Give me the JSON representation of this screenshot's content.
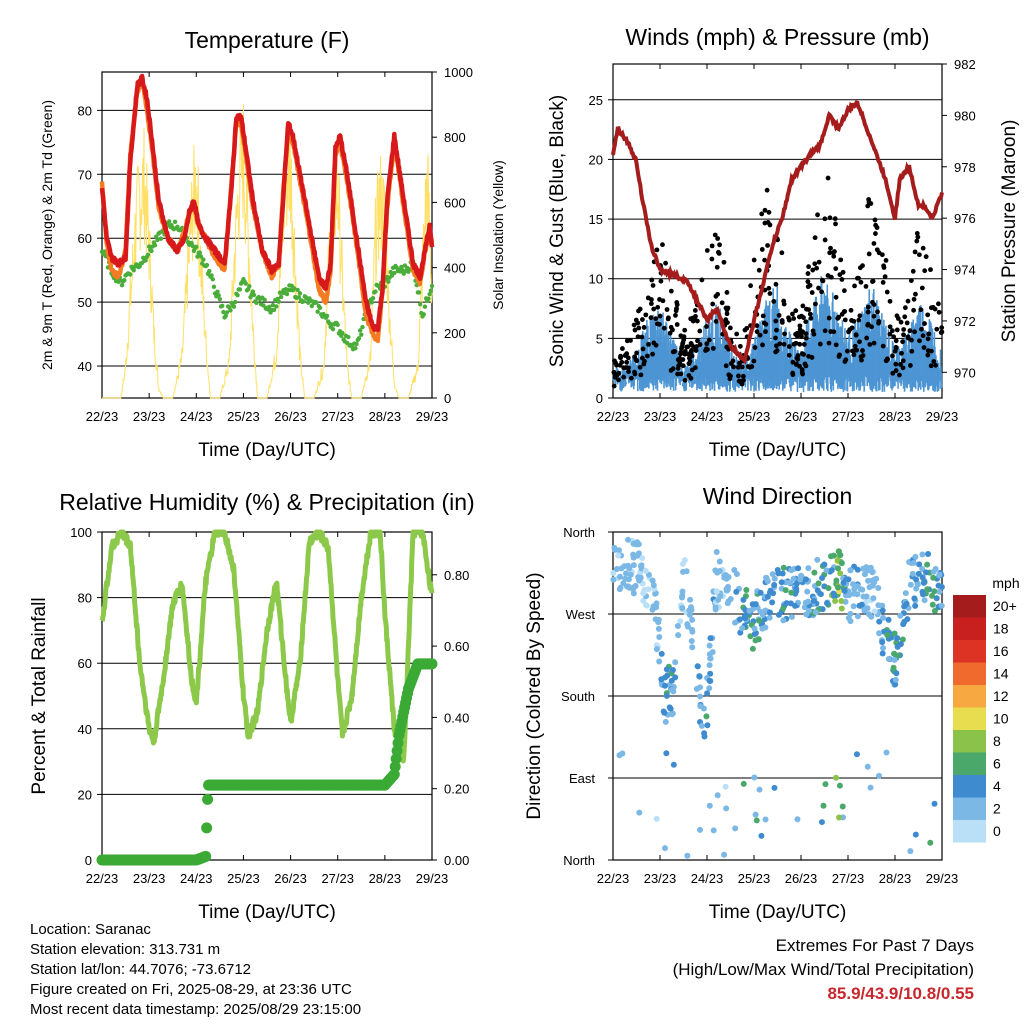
{
  "footer": {
    "location": "Location: Saranac",
    "elevation": "Station elevation: 313.731 m",
    "latlon": "Station lat/lon: 44.7076; -73.6712",
    "created": "Figure created on Fri, 2025-08-29, at 23:36 UTC",
    "recent": "Most recent data timestamp: 2025/08/29 23:15:00",
    "extremes_title": "Extremes For Past 7 Days",
    "extremes_sub": "(High/Low/Max Wind/Total Precipitation)",
    "extremes_values": "85.9/43.9/10.8/0.55"
  },
  "colors": {
    "temp2m": "#d7191c",
    "temp9m": "#f47b20",
    "dewpoint": "#4aad3a",
    "solar": "#ffe066",
    "gust": "#000000",
    "wind": "#4d95d3",
    "pressure": "#a51c1c",
    "rh": "#8cc94a",
    "precip": "#3aaa35"
  },
  "chart_data": [
    {
      "type": "line",
      "title": "Temperature (F)",
      "xlabel": "Time (Day/UTC)",
      "ylabel": "2m & 9m T (Red, Orange) & 2m Td (Green)",
      "y2label": "Solar Insolation (Yellow)",
      "x_ticks": [
        "22/23",
        "23/23",
        "24/23",
        "25/23",
        "26/23",
        "27/23",
        "28/23",
        "29/23"
      ],
      "ylim": [
        35,
        86
      ],
      "y_ticks": [
        40,
        50,
        60,
        70,
        80
      ],
      "y2lim": [
        0,
        1000
      ],
      "y2_ticks": [
        0,
        200,
        400,
        600,
        800,
        1000
      ],
      "series": [
        {
          "name": "2m T",
          "x": [
            0,
            0.1,
            0.2,
            0.35,
            0.5,
            0.6,
            0.75,
            0.85,
            0.95,
            1.05,
            1.2,
            1.4,
            1.6,
            1.75,
            1.85,
            1.95,
            2.05,
            2.2,
            2.4,
            2.6,
            2.75,
            2.85,
            2.95,
            3.05,
            3.2,
            3.4,
            3.6,
            3.75,
            3.85,
            3.95,
            4.05,
            4.2,
            4.4,
            4.6,
            4.75,
            4.85,
            4.95,
            5.05,
            5.2,
            5.4,
            5.6,
            5.75,
            5.85,
            5.95,
            6.05,
            6.2,
            6.4,
            6.6,
            6.75,
            6.85,
            6.95,
            7.0
          ],
          "values": [
            68,
            60,
            57,
            56,
            57,
            72,
            84,
            85,
            82,
            76,
            66,
            60,
            58,
            60,
            64,
            66,
            62,
            60,
            58,
            56,
            68,
            79,
            79,
            74,
            66,
            58,
            55,
            56,
            67,
            78,
            76,
            70,
            62,
            54,
            52,
            56,
            74,
            76,
            70,
            60,
            50,
            46,
            46,
            52,
            66,
            76,
            66,
            56,
            54,
            58,
            62,
            59
          ]
        },
        {
          "name": "9m T",
          "x": [
            0,
            0.1,
            0.2,
            0.35,
            0.5,
            0.6,
            0.75,
            0.85,
            0.95,
            1.05,
            1.2,
            1.4,
            1.6,
            1.75,
            1.85,
            1.95,
            2.05,
            2.2,
            2.4,
            2.6,
            2.75,
            2.85,
            2.95,
            3.05,
            3.2,
            3.4,
            3.6,
            3.75,
            3.85,
            3.95,
            4.05,
            4.2,
            4.4,
            4.6,
            4.75,
            4.85,
            4.95,
            5.05,
            5.2,
            5.4,
            5.6,
            5.75,
            5.85,
            5.95,
            6.05,
            6.2,
            6.4,
            6.6,
            6.75,
            6.85,
            6.95,
            7.0
          ],
          "values": [
            69,
            59,
            55,
            54,
            58,
            73,
            83,
            85,
            80,
            75,
            65,
            60,
            58,
            61,
            64,
            65,
            62,
            60,
            57,
            55,
            69,
            78,
            78,
            73,
            65,
            58,
            54,
            56,
            68,
            77,
            75,
            69,
            61,
            52,
            50,
            55,
            73,
            75,
            69,
            59,
            48,
            45,
            44,
            52,
            65,
            75,
            65,
            55,
            53,
            58,
            61,
            59
          ]
        },
        {
          "name": "2m Td",
          "x": [
            0,
            0.2,
            0.4,
            0.6,
            0.8,
            1.0,
            1.2,
            1.4,
            1.6,
            1.8,
            2.0,
            2.2,
            2.4,
            2.6,
            2.8,
            3.0,
            3.2,
            3.4,
            3.6,
            3.8,
            4.0,
            4.2,
            4.4,
            4.6,
            4.8,
            5.0,
            5.2,
            5.4,
            5.6,
            5.8,
            6.0,
            6.2,
            6.4,
            6.6,
            6.8,
            7.0
          ],
          "values": [
            58,
            55,
            53,
            55,
            56,
            58,
            60,
            62,
            62,
            60,
            58,
            56,
            52,
            48,
            50,
            53,
            51,
            50,
            49,
            51,
            52,
            51,
            50,
            49,
            47,
            46,
            44,
            43,
            48,
            52,
            53,
            55,
            55,
            56,
            48,
            53
          ]
        },
        {
          "name": "Solar",
          "x": [
            0,
            0.2,
            0.4,
            0.5,
            0.6,
            0.7,
            0.8,
            0.9,
            1.0,
            1.1,
            1.2,
            1.3,
            1.5,
            1.7,
            1.8,
            1.9,
            2.0,
            2.1,
            2.2,
            2.3,
            2.5,
            2.7,
            2.8,
            2.9,
            3.0,
            3.1,
            3.2,
            3.3,
            3.5,
            3.7,
            3.8,
            3.9,
            4.0,
            4.1,
            4.2,
            4.3,
            4.5,
            4.7,
            4.8,
            4.9,
            5.0,
            5.1,
            5.2,
            5.3,
            5.5,
            5.7,
            5.8,
            5.9,
            6.0,
            6.1,
            6.2,
            6.3,
            6.5,
            6.7,
            6.8,
            6.9,
            7.0
          ],
          "values": [
            0,
            0,
            0,
            120,
            380,
            640,
            800,
            850,
            600,
            260,
            40,
            0,
            0,
            160,
            440,
            700,
            860,
            520,
            220,
            0,
            0,
            140,
            520,
            820,
            950,
            640,
            280,
            0,
            0,
            180,
            560,
            880,
            900,
            520,
            160,
            0,
            0,
            120,
            480,
            760,
            820,
            450,
            120,
            0,
            0,
            160,
            620,
            780,
            700,
            320,
            60,
            0,
            0,
            120,
            520,
            860,
            420
          ]
        }
      ]
    },
    {
      "type": "scatter",
      "title": "Winds (mph) & Pressure (mb)",
      "xlabel": "Time (Day/UTC)",
      "ylabel": "Sonic Wind & Gust (Blue, Black)",
      "y2label": "Station Pressure (Maroon)",
      "x_ticks": [
        "22/23",
        "23/23",
        "24/23",
        "25/23",
        "26/23",
        "27/23",
        "28/23",
        "29/23"
      ],
      "ylim": [
        0,
        28
      ],
      "y_ticks": [
        0,
        5,
        10,
        15,
        20,
        25
      ],
      "y2lim": [
        969,
        982
      ],
      "y2_ticks": [
        970,
        972,
        974,
        976,
        978,
        980,
        982
      ],
      "series": [
        {
          "name": "Wind",
          "x": [
            0,
            0.25,
            0.5,
            0.75,
            1.0,
            1.25,
            1.5,
            1.75,
            2.0,
            2.25,
            2.5,
            2.75,
            3.0,
            3.25,
            3.5,
            3.75,
            4.0,
            4.25,
            4.5,
            4.75,
            5.0,
            5.25,
            5.5,
            5.75,
            6.0,
            6.25,
            6.5,
            6.75,
            7.0
          ],
          "values": [
            2,
            2,
            3,
            5,
            6,
            4,
            2,
            3,
            5,
            6,
            3,
            2,
            4,
            6,
            7,
            4,
            3,
            6,
            8,
            6,
            4,
            5,
            7,
            5,
            3,
            4,
            6,
            5,
            3
          ]
        },
        {
          "name": "Gust",
          "x": [
            0,
            0.25,
            0.5,
            0.75,
            1.0,
            1.25,
            1.5,
            1.75,
            2.0,
            2.25,
            2.5,
            2.75,
            3.0,
            3.25,
            3.5,
            3.75,
            4.0,
            4.25,
            4.5,
            4.75,
            5.0,
            5.25,
            5.5,
            5.75,
            6.0,
            6.25,
            6.5,
            6.75,
            7.0
          ],
          "values": [
            3,
            4,
            6,
            10,
            13,
            9,
            5,
            7,
            12,
            14,
            6,
            4,
            11,
            17,
            13,
            8,
            6,
            13,
            19,
            14,
            8,
            10,
            17,
            12,
            6,
            8,
            14,
            11,
            6
          ]
        },
        {
          "name": "Pressure",
          "x": [
            0,
            0.1,
            0.3,
            0.5,
            0.6,
            0.8,
            1.0,
            1.3,
            1.6,
            2.0,
            2.2,
            2.5,
            2.8,
            3.0,
            3.2,
            3.4,
            3.6,
            3.8,
            4.0,
            4.2,
            4.4,
            4.6,
            4.8,
            5.0,
            5.2,
            5.4,
            5.6,
            5.8,
            6.0,
            6.1,
            6.3,
            6.5,
            6.6,
            6.8,
            7.0
          ],
          "values": [
            978.5,
            979.5,
            979,
            978.2,
            977,
            975,
            974,
            973.8,
            973.5,
            972,
            972.5,
            971,
            970.5,
            972,
            973.5,
            975,
            976,
            977.5,
            978,
            978.5,
            978.8,
            980,
            979.5,
            980.2,
            980.5,
            979.5,
            978.5,
            977.5,
            976,
            977.5,
            978,
            976.5,
            976.5,
            976,
            977
          ]
        }
      ]
    },
    {
      "type": "line",
      "title": "Relative Humidity (%) & Precipitation (in)",
      "xlabel": "Time (Day/UTC)",
      "ylabel": "Percent & Total Rainfall",
      "x_ticks": [
        "22/23",
        "23/23",
        "24/23",
        "25/23",
        "26/23",
        "27/23",
        "28/23",
        "29/23"
      ],
      "ylim": [
        0,
        100
      ],
      "y_ticks": [
        0,
        20,
        40,
        60,
        80,
        100
      ],
      "y2lim": [
        0,
        0.92
      ],
      "y2_ticks": [
        "0.00",
        "0.20",
        "0.40",
        "0.60",
        "0.80"
      ],
      "series": [
        {
          "name": "RH",
          "x": [
            0,
            0.2,
            0.4,
            0.6,
            0.8,
            1.0,
            1.1,
            1.3,
            1.5,
            1.7,
            1.9,
            2.0,
            2.2,
            2.4,
            2.6,
            2.8,
            3.0,
            3.1,
            3.3,
            3.5,
            3.7,
            3.9,
            4.0,
            4.2,
            4.4,
            4.6,
            4.8,
            5.0,
            5.1,
            5.3,
            5.5,
            5.7,
            5.9,
            6.0,
            6.2,
            6.4,
            6.6,
            6.8,
            7.0
          ],
          "values": [
            72,
            95,
            100,
            96,
            60,
            40,
            36,
            55,
            78,
            84,
            55,
            48,
            85,
            100,
            100,
            88,
            50,
            38,
            45,
            70,
            85,
            55,
            42,
            60,
            97,
            100,
            95,
            55,
            38,
            50,
            80,
            100,
            100,
            75,
            40,
            30,
            100,
            100,
            80
          ]
        },
        {
          "name": "Precipitation",
          "x": [
            0,
            0.5,
            1.0,
            1.5,
            2.0,
            2.2,
            2.25,
            2.5,
            3.0,
            4.0,
            5.0,
            5.5,
            6.0,
            6.2,
            6.3,
            6.5,
            6.7,
            7.0
          ],
          "values": [
            0,
            0,
            0,
            0,
            0,
            0.01,
            0.21,
            0.21,
            0.21,
            0.21,
            0.21,
            0.21,
            0.21,
            0.24,
            0.35,
            0.48,
            0.55,
            0.55
          ]
        }
      ]
    },
    {
      "type": "scatter",
      "title": "Wind Direction",
      "xlabel": "Time (Day/UTC)",
      "ylabel": "Direction (Colored By Speed)",
      "x_ticks": [
        "22/23",
        "23/23",
        "24/23",
        "25/23",
        "26/23",
        "27/23",
        "28/23",
        "29/23"
      ],
      "y_ticks": [
        "North",
        "West",
        "South",
        "East",
        "North"
      ],
      "ylim": [
        0,
        360
      ],
      "colorbar_title": "mph",
      "colorbar_labels": [
        "20+",
        "18",
        "16",
        "14",
        "12",
        "10",
        "8",
        "6",
        "4",
        "2",
        "0"
      ],
      "colorbar_colors": [
        "#a51c1c",
        "#c8201f",
        "#dc3324",
        "#ef6a2c",
        "#f8a840",
        "#e8dd4e",
        "#8bc34a",
        "#4aa86a",
        "#3e8ccf",
        "#7bb8e6",
        "#b9e0f7"
      ],
      "series": [
        {
          "name": "Direction",
          "x": [
            0.1,
            0.3,
            0.5,
            0.8,
            0.95,
            1.1,
            1.3,
            1.5,
            1.7,
            1.9,
            2.0,
            2.2,
            2.4,
            2.6,
            2.8,
            3.0,
            3.2,
            3.5,
            3.8,
            4.0,
            4.3,
            4.6,
            4.8,
            5.0,
            5.3,
            5.6,
            5.8,
            6.0,
            6.3,
            6.6,
            6.8,
            6.9
          ],
          "values": [
            320,
            325,
            320,
            300,
            250,
            180,
            190,
            320,
            240,
            160,
            170,
            310,
            300,
            290,
            270,
            260,
            280,
            290,
            295,
            290,
            300,
            305,
            310,
            290,
            300,
            290,
            240,
            220,
            300,
            310,
            310,
            290
          ],
          "speed": [
            2,
            3,
            2,
            1,
            3,
            5,
            4,
            1,
            3,
            4,
            5,
            2,
            2,
            3,
            5,
            6,
            4,
            4,
            5,
            3,
            5,
            6,
            8,
            4,
            3,
            2,
            5,
            6,
            3,
            5,
            6,
            4
          ]
        }
      ]
    }
  ]
}
